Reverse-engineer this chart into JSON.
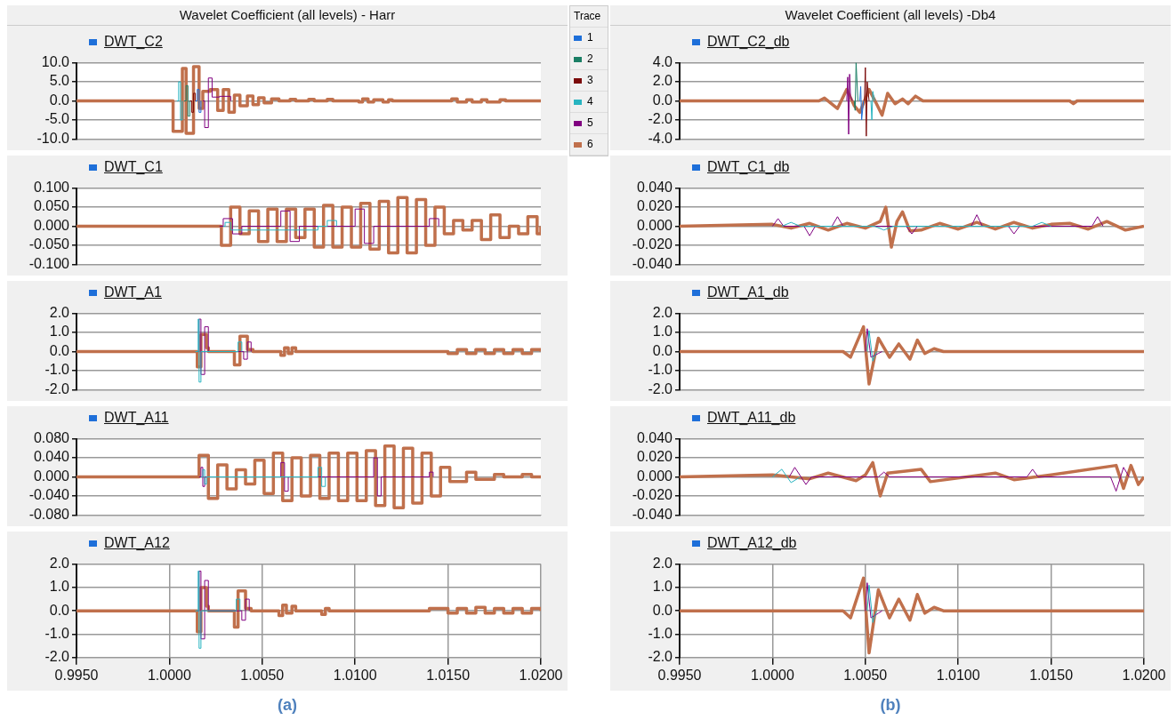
{
  "chart_data": [
    {
      "type": "step",
      "title": "Wavelet Coefficient (all levels) - Harr",
      "subtitle": "DWT_C2",
      "legend": "right",
      "legend_title": "Trace",
      "grid": true,
      "marker": "none",
      "tick_labels": "y",
      "xlim": [
        0.995,
        1.02
      ],
      "xticks": [
        {
          "value": 0.995,
          "label": null
        },
        {
          "value": 1.0,
          "label": null
        },
        {
          "value": 1.005,
          "label": null
        },
        {
          "value": 1.01,
          "label": null
        },
        {
          "value": 1.015,
          "label": null
        },
        {
          "value": 1.02,
          "label": null
        }
      ],
      "ylim": [
        -10,
        10
      ],
      "yticks": [
        {
          "value": -10,
          "label": "-10.0"
        },
        {
          "value": -5,
          "label": "-5.0"
        },
        {
          "value": 0,
          "label": "0.0"
        },
        {
          "value": 5,
          "label": "5.0"
        },
        {
          "value": 10,
          "label": "10.0"
        }
      ],
      "series": [
        {
          "name": "1",
          "color": "#1e6fd9",
          "x": [
            1.0014,
            1.0015,
            1.0016,
            1.0017
          ],
          "values": [
            0,
            3,
            -3,
            0
          ]
        },
        {
          "name": "2",
          "color": "#1b7f65",
          "x": [
            1.0008,
            1.0009,
            1.001,
            1.0011
          ],
          "values": [
            0,
            4,
            -4,
            0
          ]
        },
        {
          "name": "3",
          "color": "#7b0a0a",
          "x": [
            1.0011,
            1.0012,
            1.0013,
            1.0014
          ],
          "values": [
            0,
            -3,
            2,
            0
          ]
        },
        {
          "name": "4",
          "color": "#28b4c0",
          "x": [
            1.0004,
            1.0005,
            1.0006,
            1.0007
          ],
          "values": [
            0,
            5,
            -5,
            0
          ]
        },
        {
          "name": "5",
          "color": "#800080",
          "x": [
            1.0018,
            1.0019,
            1.0021,
            1.0023,
            1.0027,
            1.0033
          ],
          "values": [
            0,
            -7,
            6,
            1,
            1.2,
            0
          ]
        },
        {
          "name": "6",
          "color": "#c0704c",
          "x": [
            0.995,
            1.0002,
            1.0007,
            1.0009,
            1.0013,
            1.0016,
            1.0018,
            1.0022,
            1.0026,
            1.0029,
            1.0032,
            1.0035,
            1.0038,
            1.0042,
            1.0045,
            1.0048,
            1.0051,
            1.0055,
            1.0059,
            1.0065,
            1.0068,
            1.0075,
            1.0078,
            1.0085,
            1.0088,
            1.0102,
            1.0104,
            1.0107,
            1.011,
            1.0115,
            1.0118,
            1.012,
            1.0152,
            1.0155,
            1.016,
            1.0163,
            1.0168,
            1.0171,
            1.0178,
            1.0181,
            1.02
          ],
          "values": [
            0,
            -8,
            8.5,
            -8.5,
            9,
            -2,
            2.5,
            3,
            -2.5,
            3,
            -3,
            1.5,
            -1.3,
            1.3,
            -1,
            0.8,
            -0.5,
            0.5,
            0,
            0.4,
            0,
            0.4,
            0,
            0.4,
            0,
            -0.3,
            0.5,
            -0.3,
            0.3,
            -0.3,
            0.3,
            0,
            0.5,
            -0.3,
            0.3,
            -0.3,
            0.3,
            -0.3,
            0.3,
            0,
            0
          ]
        }
      ]
    },
    {
      "type": "step",
      "title": "DWT_C1",
      "grid": true,
      "marker": "none",
      "tick_labels": "y",
      "xlim": [
        0.995,
        1.02
      ],
      "xticks": [
        {
          "value": 0.995,
          "label": null
        },
        {
          "value": 1.0,
          "label": null
        },
        {
          "value": 1.005,
          "label": null
        },
        {
          "value": 1.01,
          "label": null
        },
        {
          "value": 1.015,
          "label": null
        },
        {
          "value": 1.02,
          "label": null
        }
      ],
      "ylim": [
        -0.1,
        0.1
      ],
      "yticks": [
        {
          "value": -0.1,
          "label": "-0.100"
        },
        {
          "value": -0.05,
          "label": "-0.050"
        },
        {
          "value": 0,
          "label": "0.000"
        },
        {
          "value": 0.05,
          "label": "0.050"
        },
        {
          "value": 0.1,
          "label": "0.100"
        }
      ],
      "series": [
        {
          "color": "#28b4c0",
          "x": [
            1.0029,
            1.003,
            1.0033,
            1.008,
            1.0085,
            1.009
          ],
          "values": [
            0,
            0.01,
            -0.01,
            0,
            0.015,
            0
          ]
        },
        {
          "color": "#800080",
          "x": [
            1.0027,
            1.0029,
            1.0034,
            1.0039,
            1.006,
            1.0065,
            1.007,
            1.01,
            1.0105,
            1.011,
            1.014,
            1.0145
          ],
          "values": [
            0,
            0.02,
            -0.02,
            0,
            0.04,
            -0.04,
            0,
            0.045,
            -0.045,
            0,
            0.02,
            0
          ]
        },
        {
          "color": "#c0704c",
          "x": [
            0.995,
            1.0028,
            1.0033,
            1.0038,
            1.0043,
            1.0048,
            1.0053,
            1.0058,
            1.0063,
            1.0068,
            1.0073,
            1.0078,
            1.0083,
            1.0088,
            1.0093,
            1.0098,
            1.0103,
            1.0108,
            1.0113,
            1.0118,
            1.0123,
            1.0128,
            1.0133,
            1.0138,
            1.0143,
            1.0148,
            1.0153,
            1.0158,
            1.0163,
            1.0168,
            1.0173,
            1.0178,
            1.0183,
            1.0188,
            1.0193,
            1.0198,
            1.02
          ],
          "values": [
            0,
            -0.05,
            0.05,
            -0.02,
            0.04,
            -0.04,
            0.045,
            -0.04,
            0.045,
            -0.03,
            0.045,
            -0.055,
            0.055,
            -0.055,
            0.05,
            -0.055,
            0.06,
            -0.06,
            0.065,
            -0.07,
            0.075,
            -0.07,
            0.07,
            -0.05,
            0.05,
            -0.02,
            0.015,
            -0.01,
            0.015,
            -0.035,
            0.03,
            -0.03,
            0,
            -0.02,
            0.025,
            -0.02,
            0
          ]
        }
      ]
    },
    {
      "type": "step",
      "title": "DWT_A1",
      "grid": true,
      "marker": "none",
      "tick_labels": "y",
      "xlim": [
        0.995,
        1.02
      ],
      "xticks": [
        {
          "value": 0.995,
          "label": null
        },
        {
          "value": 1.0,
          "label": null
        },
        {
          "value": 1.005,
          "label": null
        },
        {
          "value": 1.01,
          "label": null
        },
        {
          "value": 1.015,
          "label": null
        },
        {
          "value": 1.02,
          "label": null
        }
      ],
      "ylim": [
        -2,
        2
      ],
      "yticks": [
        {
          "value": -2,
          "label": "-2.0"
        },
        {
          "value": -1,
          "label": "-1.0"
        },
        {
          "value": 0,
          "label": "0.0"
        },
        {
          "value": 1,
          "label": "1.0"
        },
        {
          "value": 2,
          "label": "2.0"
        }
      ],
      "series": [
        {
          "color": "#28b4c0",
          "x": [
            1.0014,
            1.00155,
            1.0016,
            1.0017,
            1.0037,
            1.0039
          ],
          "values": [
            0,
            1.7,
            -1.6,
            0,
            0.5,
            0
          ]
        },
        {
          "color": "#800080",
          "x": [
            1.0015,
            1.0016,
            1.0017,
            1.0019,
            1.0021,
            1.004,
            1.0042,
            1.0044
          ],
          "values": [
            0,
            1.7,
            -1.2,
            1.3,
            0,
            -0.4,
            0.5,
            0
          ]
        },
        {
          "color": "#c0704c",
          "x": [
            0.995,
            1.0015,
            1.0017,
            1.002,
            1.0021,
            1.0035,
            1.0038,
            1.0042,
            1.0045,
            1.006,
            1.0062,
            1.0064,
            1.0066,
            1.0068,
            1.015,
            1.0155,
            1.016,
            1.0165,
            1.017,
            1.0175,
            1.018,
            1.0185,
            1.019,
            1.0195,
            1.02
          ],
          "values": [
            0,
            -0.8,
            0.9,
            0.2,
            0,
            -0.7,
            0.8,
            0.1,
            0,
            -0.2,
            0.2,
            -0.1,
            0.2,
            0,
            -0.1,
            0.1,
            -0.1,
            0.1,
            -0.1,
            0.1,
            -0.1,
            0.1,
            -0.1,
            0.1,
            0
          ]
        }
      ]
    },
    {
      "type": "step",
      "title": "DWT_A11",
      "grid": true,
      "marker": "none",
      "tick_labels": "y",
      "xlim": [
        0.995,
        1.02
      ],
      "xticks": [
        {
          "value": 0.995,
          "label": null
        },
        {
          "value": 1.0,
          "label": null
        },
        {
          "value": 1.005,
          "label": null
        },
        {
          "value": 1.01,
          "label": null
        },
        {
          "value": 1.015,
          "label": null
        },
        {
          "value": 1.02,
          "label": null
        }
      ],
      "ylim": [
        -0.08,
        0.08
      ],
      "yticks": [
        {
          "value": -0.08,
          "label": "-0.080"
        },
        {
          "value": -0.04,
          "label": "-0.040"
        },
        {
          "value": 0,
          "label": "0.000"
        },
        {
          "value": 0.04,
          "label": "0.040"
        },
        {
          "value": 0.08,
          "label": "0.080"
        }
      ],
      "series": [
        {
          "color": "#28b4c0",
          "x": [
            1.0017,
            1.0018,
            1.0019,
            1.002,
            1.008,
            1.0082,
            1.0084
          ],
          "values": [
            0,
            0.015,
            -0.015,
            0,
            0.02,
            -0.02,
            0
          ]
        },
        {
          "color": "#800080",
          "x": [
            1.0016,
            1.0017,
            1.0018,
            1.0019,
            1.006,
            1.0062,
            1.0064,
            1.011,
            1.0112,
            1.0114,
            1.014,
            1.0142
          ],
          "values": [
            0,
            0.02,
            -0.02,
            0,
            0.03,
            -0.03,
            0,
            0.04,
            -0.04,
            0,
            0.01,
            0
          ]
        },
        {
          "color": "#c0704c",
          "x": [
            0.995,
            1.0016,
            1.0021,
            1.0026,
            1.0031,
            1.0036,
            1.0041,
            1.0046,
            1.0051,
            1.0056,
            1.0061,
            1.0066,
            1.0071,
            1.0076,
            1.0081,
            1.0086,
            1.0091,
            1.0096,
            1.0101,
            1.0106,
            1.0111,
            1.0116,
            1.0121,
            1.0126,
            1.0131,
            1.0136,
            1.0141,
            1.0146,
            1.0151,
            1.016,
            1.0165,
            1.0175,
            1.018,
            1.019,
            1.0195,
            1.02
          ],
          "values": [
            0,
            0.045,
            -0.045,
            0.025,
            -0.025,
            0.015,
            -0.015,
            0.035,
            -0.035,
            0.05,
            -0.05,
            0.04,
            -0.04,
            0.045,
            -0.045,
            0.05,
            -0.05,
            0.05,
            -0.05,
            0.055,
            -0.06,
            0.065,
            -0.065,
            0.06,
            -0.055,
            0.05,
            -0.04,
            0.02,
            -0.01,
            0.01,
            -0.005,
            0.005,
            0,
            0.005,
            0,
            0
          ]
        }
      ]
    },
    {
      "type": "step",
      "title": "DWT_A12",
      "annotations": [
        "(a)"
      ],
      "grid": true,
      "marker": "none",
      "xlim": [
        0.995,
        1.02
      ],
      "xticks": [
        {
          "value": 0.995,
          "label": "0.9950"
        },
        {
          "value": 1.0,
          "label": "1.0000"
        },
        {
          "value": 1.005,
          "label": "1.0050"
        },
        {
          "value": 1.01,
          "label": "1.0100"
        },
        {
          "value": 1.015,
          "label": "1.0150"
        },
        {
          "value": 1.02,
          "label": "1.0200"
        }
      ],
      "ylim": [
        -2,
        2
      ],
      "yticks": [
        {
          "value": -2,
          "label": "-2.0"
        },
        {
          "value": -1,
          "label": "-1.0"
        },
        {
          "value": 0,
          "label": "0.0"
        },
        {
          "value": 1,
          "label": "1.0"
        },
        {
          "value": 2,
          "label": "2.0"
        }
      ],
      "series": [
        {
          "color": "#28b4c0",
          "x": [
            1.0014,
            1.00155,
            1.0016,
            1.0017,
            1.0036,
            1.0038
          ],
          "values": [
            0,
            1.7,
            -1.6,
            0,
            0.5,
            0
          ]
        },
        {
          "color": "#800080",
          "x": [
            1.0015,
            1.0016,
            1.0017,
            1.0019,
            1.0021,
            1.0039,
            1.0041,
            1.0043
          ],
          "values": [
            0,
            1.7,
            -1.2,
            1.3,
            0,
            -0.4,
            0.5,
            0
          ]
        },
        {
          "color": "#c0704c",
          "x": [
            0.995,
            1.0015,
            1.0017,
            1.002,
            1.0021,
            1.0035,
            1.0037,
            1.0041,
            1.0044,
            1.0059,
            1.0061,
            1.0063,
            1.0066,
            1.0068,
            1.0082,
            1.0084,
            1.0086,
            1.014,
            1.015,
            1.0155,
            1.016,
            1.0165,
            1.017,
            1.0175,
            1.018,
            1.0185,
            1.019,
            1.0195,
            1.02
          ],
          "values": [
            0,
            -0.9,
            1,
            0.2,
            0,
            -0.7,
            0.85,
            0.1,
            0,
            -0.2,
            0.25,
            -0.1,
            0.2,
            0,
            -0.15,
            0.1,
            0,
            0.1,
            -0.1,
            0.1,
            -0.1,
            0.15,
            -0.1,
            0.1,
            -0.1,
            0.1,
            -0.1,
            0.1,
            0
          ]
        }
      ]
    },
    {
      "type": "line",
      "title": "Wavelet Coefficient (all levels) -Db4",
      "subtitle": "DWT_C2_db",
      "grid": true,
      "marker": "none",
      "tick_labels": "y",
      "xlim": [
        0.995,
        1.02
      ],
      "xticks": [
        {
          "value": 0.995,
          "label": null
        },
        {
          "value": 1.0,
          "label": null
        },
        {
          "value": 1.005,
          "label": null
        },
        {
          "value": 1.01,
          "label": null
        },
        {
          "value": 1.015,
          "label": null
        },
        {
          "value": 1.02,
          "label": null
        }
      ],
      "ylim": [
        -4,
        4
      ],
      "yticks": [
        {
          "value": -4,
          "label": "-4.0"
        },
        {
          "value": -2,
          "label": "-2.0"
        },
        {
          "value": 0,
          "label": "0.0"
        },
        {
          "value": 2,
          "label": "2.0"
        },
        {
          "value": 4,
          "label": "4.0"
        }
      ],
      "series": [
        {
          "color": "#1e6fd9",
          "x": [
            1.0047,
            1.00475,
            1.0048,
            1.0049
          ],
          "values": [
            0,
            1.5,
            -2,
            0
          ]
        },
        {
          "color": "#1b7f65",
          "x": [
            1.0044,
            1.00445,
            1.0045,
            1.0046
          ],
          "values": [
            0,
            -1,
            4,
            0
          ]
        },
        {
          "color": "#7b0a0a",
          "x": [
            1.00495,
            1.005,
            1.00505,
            1.0051,
            1.0052
          ],
          "values": [
            0,
            3.5,
            -3.7,
            2,
            0
          ]
        },
        {
          "color": "#28b4c0",
          "x": [
            1.0053,
            1.00535,
            1.0054,
            1.0055
          ],
          "values": [
            0,
            -2,
            1,
            0
          ]
        },
        {
          "color": "#800080",
          "x": [
            1.004,
            1.00405,
            1.0041,
            1.00415,
            1.0042,
            1.0043
          ],
          "values": [
            0,
            2.5,
            -3.5,
            2.8,
            0.5,
            0
          ]
        },
        {
          "color": "#c0704c",
          "x": [
            0.995,
            1.0025,
            1.0028,
            1.0035,
            1.004,
            1.0044,
            1.0047,
            1.0052,
            1.0056,
            1.0059,
            1.0062,
            1.0066,
            1.007,
            1.0073,
            1.0077,
            1.0081,
            1.016,
            1.0162,
            1.0164,
            1.02
          ],
          "values": [
            0,
            0,
            0.3,
            -0.8,
            1.2,
            -0.5,
            -1.2,
            1.2,
            -0.3,
            -1.5,
            0.8,
            -0.3,
            0.2,
            -0.3,
            0.5,
            0,
            0,
            -0.3,
            0,
            0
          ]
        }
      ]
    },
    {
      "type": "line",
      "title": "DWT_C1_db",
      "grid": true,
      "marker": "none",
      "tick_labels": "y",
      "xlim": [
        0.995,
        1.02
      ],
      "xticks": [
        {
          "value": 0.995,
          "label": null
        },
        {
          "value": 1.0,
          "label": null
        },
        {
          "value": 1.005,
          "label": null
        },
        {
          "value": 1.01,
          "label": null
        },
        {
          "value": 1.015,
          "label": null
        },
        {
          "value": 1.02,
          "label": null
        }
      ],
      "ylim": [
        -0.04,
        0.04
      ],
      "yticks": [
        {
          "value": -0.04,
          "label": "-0.040"
        },
        {
          "value": -0.02,
          "label": "-0.020"
        },
        {
          "value": 0,
          "label": "0.000"
        },
        {
          "value": 0.02,
          "label": "0.020"
        },
        {
          "value": 0.04,
          "label": "0.040"
        }
      ],
      "series": [
        {
          "color": "#28b4c0",
          "x": [
            1.0005,
            1.001,
            1.0015,
            1.0055,
            1.006,
            1.0065,
            1.014,
            1.0145,
            1.015
          ],
          "values": [
            0,
            0.004,
            0,
            0,
            -0.004,
            0,
            0,
            0.004,
            0
          ]
        },
        {
          "color": "#800080",
          "x": [
            1.0,
            1.0003,
            1.0006,
            1.0017,
            1.002,
            1.0023,
            1.0032,
            1.0035,
            1.0038,
            1.0072,
            1.0075,
            1.0078,
            1.0107,
            1.011,
            1.0113,
            1.0127,
            1.013,
            1.0133,
            1.0172,
            1.0175,
            1.0178
          ],
          "values": [
            0,
            0.008,
            0,
            0,
            -0.01,
            0,
            0,
            0.01,
            0,
            0,
            -0.008,
            0,
            0,
            0.012,
            0,
            0,
            -0.008,
            0,
            0,
            0.01,
            0
          ]
        },
        {
          "color": "#c0704c",
          "x": [
            0.995,
            1.0,
            1.001,
            1.002,
            1.003,
            1.004,
            1.005,
            1.0058,
            1.0061,
            1.0064,
            1.0067,
            1.007,
            1.0074,
            1.008,
            1.009,
            1.01,
            1.011,
            1.012,
            1.013,
            1.014,
            1.015,
            1.016,
            1.017,
            1.018,
            1.019,
            1.02
          ],
          "values": [
            0,
            0.002,
            -0.002,
            0.003,
            -0.004,
            0.003,
            -0.002,
            0.005,
            0.02,
            -0.022,
            0.005,
            0.015,
            -0.005,
            -0.004,
            0.003,
            -0.003,
            0.004,
            -0.003,
            0.004,
            -0.002,
            0.002,
            0.003,
            -0.003,
            0.005,
            -0.004,
            0
          ]
        }
      ]
    },
    {
      "type": "line",
      "title": "DWT_A1_db",
      "grid": true,
      "marker": "none",
      "tick_labels": "y",
      "xlim": [
        0.995,
        1.02
      ],
      "xticks": [
        {
          "value": 0.995,
          "label": null
        },
        {
          "value": 1.0,
          "label": null
        },
        {
          "value": 1.005,
          "label": null
        },
        {
          "value": 1.01,
          "label": null
        },
        {
          "value": 1.015,
          "label": null
        },
        {
          "value": 1.02,
          "label": null
        }
      ],
      "ylim": [
        -2,
        2
      ],
      "yticks": [
        {
          "value": -2,
          "label": "-2.0"
        },
        {
          "value": -1,
          "label": "-1.0"
        },
        {
          "value": 0,
          "label": "0.0"
        },
        {
          "value": 1,
          "label": "1.0"
        },
        {
          "value": 2,
          "label": "2.0"
        }
      ],
      "series": [
        {
          "color": "#28b4c0",
          "x": [
            1.0051,
            1.0052,
            1.0054,
            1.0056
          ],
          "values": [
            0,
            1.1,
            -0.5,
            0
          ]
        },
        {
          "color": "#800080",
          "x": [
            1.005,
            1.0051,
            1.0053,
            1.0057,
            1.0059
          ],
          "values": [
            0,
            1.2,
            -0.3,
            -0.1,
            0
          ]
        },
        {
          "color": "#c0704c",
          "x": [
            0.995,
            1.0038,
            1.0042,
            1.0049,
            1.0052,
            1.0057,
            1.0063,
            1.0068,
            1.0074,
            1.0078,
            1.0082,
            1.0087,
            1.0092,
            1.02
          ],
          "values": [
            0,
            0,
            -0.3,
            1.3,
            -1.7,
            0.7,
            -0.3,
            0.4,
            -0.4,
            0.6,
            -0.1,
            0.15,
            0,
            0
          ]
        }
      ]
    },
    {
      "type": "line",
      "title": "DWT_A11_db",
      "grid": true,
      "marker": "none",
      "tick_labels": "y",
      "xlim": [
        0.995,
        1.02
      ],
      "xticks": [
        {
          "value": 0.995,
          "label": null
        },
        {
          "value": 1.0,
          "label": null
        },
        {
          "value": 1.005,
          "label": null
        },
        {
          "value": 1.01,
          "label": null
        },
        {
          "value": 1.015,
          "label": null
        },
        {
          "value": 1.02,
          "label": null
        }
      ],
      "ylim": [
        -0.04,
        0.04
      ],
      "yticks": [
        {
          "value": -0.04,
          "label": "-0.040"
        },
        {
          "value": -0.02,
          "label": "-0.020"
        },
        {
          "value": 0,
          "label": "0.000"
        },
        {
          "value": 0.02,
          "label": "0.020"
        },
        {
          "value": 0.04,
          "label": "0.040"
        }
      ],
      "series": [
        {
          "color": "#28b4c0",
          "x": [
            1.0,
            1.0005,
            1.001,
            1.0015
          ],
          "values": [
            0,
            0.008,
            -0.006,
            0
          ]
        },
        {
          "color": "#800080",
          "x": [
            1.0009,
            1.0012,
            1.0018,
            1.0021,
            1.0057,
            1.006,
            1.0063,
            1.0137,
            1.014,
            1.0143,
            1.0182,
            1.0185,
            1.0189,
            1.0192
          ],
          "values": [
            0,
            0.01,
            -0.008,
            0,
            0,
            0.005,
            0,
            0,
            0.008,
            0,
            0,
            -0.015,
            0.01,
            0
          ]
        },
        {
          "color": "#c0704c",
          "x": [
            0.995,
            1.0,
            1.002,
            1.003,
            1.0045,
            1.005,
            1.0054,
            1.0058,
            1.0062,
            1.008,
            1.0085,
            1.012,
            1.013,
            1.015,
            1.0185,
            1.0189,
            1.0193,
            1.0197,
            1.02
          ],
          "values": [
            0,
            0.002,
            -0.002,
            0.004,
            -0.004,
            0.002,
            0.015,
            -0.02,
            0.004,
            0.008,
            -0.005,
            0.004,
            -0.003,
            0.002,
            0.012,
            -0.012,
            0.012,
            -0.008,
            0
          ]
        }
      ]
    },
    {
      "type": "line",
      "title": "DWT_A12_db",
      "annotations": [
        "(b)"
      ],
      "grid": true,
      "marker": "none",
      "xlim": [
        0.995,
        1.02
      ],
      "xticks": [
        {
          "value": 0.995,
          "label": "0.9950"
        },
        {
          "value": 1.0,
          "label": "1.0000"
        },
        {
          "value": 1.005,
          "label": "1.0050"
        },
        {
          "value": 1.01,
          "label": "1.0100"
        },
        {
          "value": 1.015,
          "label": "1.0150"
        },
        {
          "value": 1.02,
          "label": "1.0200"
        }
      ],
      "ylim": [
        -2,
        2
      ],
      "yticks": [
        {
          "value": -2,
          "label": "-2.0"
        },
        {
          "value": -1,
          "label": "-1.0"
        },
        {
          "value": 0,
          "label": "0.0"
        },
        {
          "value": 1,
          "label": "1.0"
        },
        {
          "value": 2,
          "label": "2.0"
        }
      ],
      "series": [
        {
          "color": "#28b4c0",
          "x": [
            1.0051,
            1.0052,
            1.0054,
            1.0056
          ],
          "values": [
            0,
            1.1,
            -0.5,
            0
          ]
        },
        {
          "color": "#800080",
          "x": [
            1.005,
            1.0051,
            1.0053,
            1.0057,
            1.0059
          ],
          "values": [
            0,
            1.2,
            -0.3,
            -0.1,
            0
          ]
        },
        {
          "color": "#c0704c",
          "x": [
            0.995,
            1.0038,
            1.0042,
            1.0049,
            1.0052,
            1.0057,
            1.0063,
            1.0068,
            1.0074,
            1.0078,
            1.0082,
            1.0087,
            1.0092,
            1.02
          ],
          "values": [
            0,
            0,
            -0.3,
            1.4,
            -1.8,
            0.9,
            -0.3,
            0.5,
            -0.4,
            0.7,
            -0.1,
            0.15,
            0,
            0
          ]
        }
      ]
    }
  ]
}
